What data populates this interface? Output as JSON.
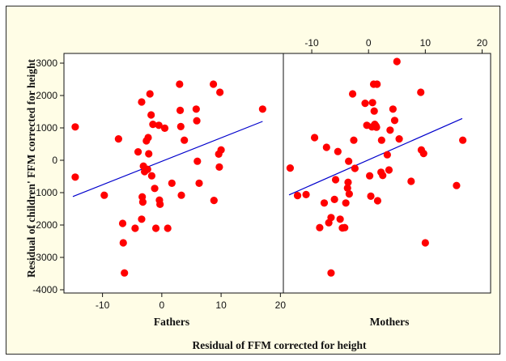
{
  "colors": {
    "background": "#fffde6",
    "point": "#ff0000",
    "fit_line": "#0000cc",
    "panel": "#ffffff"
  },
  "labels": {
    "ylabel": "Residual of children' FFM corrected for height",
    "xlabel": "Residual of FFM corrected for height"
  },
  "chart_data": [
    {
      "type": "scatter",
      "title": "Fathers",
      "xlim": [
        -16.5,
        20.5
      ],
      "ylim": [
        -4100,
        3300
      ],
      "x_ticks": [
        "-10",
        "0",
        "10",
        "20"
      ],
      "y_ticks": [
        "-4000",
        "-3000",
        "-2000",
        "-1000",
        "0",
        "1000",
        "2000",
        "3000"
      ],
      "x_tick_values": [
        -10,
        0,
        10,
        20
      ],
      "y_tick_values": [
        -4000,
        -3000,
        -2000,
        -1000,
        0,
        1000,
        2000,
        3000
      ],
      "x_axis_position": "bottom",
      "y_axis_position": "left",
      "grid": false,
      "trend_line": {
        "x": [
          -15,
          17
        ],
        "y": [
          -1120,
          1200
        ]
      },
      "points": [
        {
          "x": -14.6,
          "y": 1030
        },
        {
          "x": -14.6,
          "y": -520
        },
        {
          "x": -9.7,
          "y": -1080
        },
        {
          "x": -7.3,
          "y": 660
        },
        {
          "x": -6.6,
          "y": -1950
        },
        {
          "x": -6.5,
          "y": -2550
        },
        {
          "x": -6.3,
          "y": -3480
        },
        {
          "x": -4.5,
          "y": -2100
        },
        {
          "x": -4.0,
          "y": 260
        },
        {
          "x": -3.4,
          "y": 1800
        },
        {
          "x": -3.4,
          "y": -1820
        },
        {
          "x": -3.3,
          "y": -1130
        },
        {
          "x": -3.2,
          "y": -1290
        },
        {
          "x": -3.1,
          "y": -180
        },
        {
          "x": -2.9,
          "y": -350
        },
        {
          "x": -2.6,
          "y": 600
        },
        {
          "x": -2.4,
          "y": -280
        },
        {
          "x": -2.3,
          "y": 700
        },
        {
          "x": -2.2,
          "y": 200
        },
        {
          "x": -2.0,
          "y": 2050
        },
        {
          "x": -1.8,
          "y": 1400
        },
        {
          "x": -1.7,
          "y": -480
        },
        {
          "x": -1.5,
          "y": 1110
        },
        {
          "x": -1.2,
          "y": -870
        },
        {
          "x": -1.0,
          "y": -2100
        },
        {
          "x": -0.5,
          "y": 1080
        },
        {
          "x": -0.4,
          "y": -1230
        },
        {
          "x": -0.3,
          "y": -1360
        },
        {
          "x": 0.5,
          "y": 990
        },
        {
          "x": 1.0,
          "y": -2100
        },
        {
          "x": 1.7,
          "y": -710
        },
        {
          "x": 3.0,
          "y": 2350
        },
        {
          "x": 3.1,
          "y": 1540
        },
        {
          "x": 3.2,
          "y": 1040
        },
        {
          "x": 3.3,
          "y": -1080
        },
        {
          "x": 3.8,
          "y": 620
        },
        {
          "x": 5.8,
          "y": 1580
        },
        {
          "x": 5.9,
          "y": 1220
        },
        {
          "x": 6.0,
          "y": -30
        },
        {
          "x": 6.3,
          "y": -710
        },
        {
          "x": 8.7,
          "y": 2350
        },
        {
          "x": 8.8,
          "y": -1240
        },
        {
          "x": 9.6,
          "y": 190
        },
        {
          "x": 9.7,
          "y": -210
        },
        {
          "x": 9.8,
          "y": 2100
        },
        {
          "x": 10.0,
          "y": 320
        },
        {
          "x": 17.0,
          "y": 1580
        }
      ]
    },
    {
      "type": "scatter",
      "title": "Mothers",
      "xlim": [
        -15,
        21.5
      ],
      "ylim": [
        -4100,
        3300
      ],
      "x_ticks": [
        "-10",
        "0",
        "10",
        "20"
      ],
      "x_tick_values": [
        -10,
        0,
        10,
        20
      ],
      "y_tick_values": [
        -4000,
        -3000,
        -2000,
        -1000,
        0,
        1000,
        2000,
        3000
      ],
      "x_axis_position": "top",
      "grid": false,
      "trend_line": {
        "x": [
          -14,
          16.5
        ],
        "y": [
          -1070,
          1290
        ]
      },
      "points": [
        {
          "x": -13.8,
          "y": -240
        },
        {
          "x": -12.5,
          "y": -1090
        },
        {
          "x": -11.0,
          "y": -1060
        },
        {
          "x": -9.5,
          "y": 700
        },
        {
          "x": -8.6,
          "y": -2080
        },
        {
          "x": -7.8,
          "y": -1320
        },
        {
          "x": -7.4,
          "y": 400
        },
        {
          "x": -7.0,
          "y": -1930
        },
        {
          "x": -6.6,
          "y": -1770
        },
        {
          "x": -6.6,
          "y": -3480
        },
        {
          "x": -6.0,
          "y": -1210
        },
        {
          "x": -5.8,
          "y": -600
        },
        {
          "x": -5.4,
          "y": 270
        },
        {
          "x": -5.0,
          "y": -1820
        },
        {
          "x": -4.6,
          "y": -2090
        },
        {
          "x": -4.2,
          "y": -2080
        },
        {
          "x": -4.0,
          "y": -1320
        },
        {
          "x": -3.7,
          "y": -860
        },
        {
          "x": -3.6,
          "y": -680
        },
        {
          "x": -3.5,
          "y": -30
        },
        {
          "x": -3.4,
          "y": -1040
        },
        {
          "x": -2.8,
          "y": 2050
        },
        {
          "x": -2.6,
          "y": 620
        },
        {
          "x": -2.4,
          "y": -250
        },
        {
          "x": -0.6,
          "y": 1760
        },
        {
          "x": -0.3,
          "y": 1080
        },
        {
          "x": 0.2,
          "y": -480
        },
        {
          "x": 0.4,
          "y": -1110
        },
        {
          "x": 0.6,
          "y": 1030
        },
        {
          "x": 0.7,
          "y": 1780
        },
        {
          "x": 0.9,
          "y": 2350
        },
        {
          "x": 1.0,
          "y": 1520
        },
        {
          "x": 1.1,
          "y": 1110
        },
        {
          "x": 1.3,
          "y": 1060
        },
        {
          "x": 1.4,
          "y": 1020
        },
        {
          "x": 1.5,
          "y": 2350
        },
        {
          "x": 1.6,
          "y": -1250
        },
        {
          "x": 2.2,
          "y": -370
        },
        {
          "x": 2.3,
          "y": 620
        },
        {
          "x": 2.5,
          "y": -470
        },
        {
          "x": 3.3,
          "y": 170
        },
        {
          "x": 3.6,
          "y": -300
        },
        {
          "x": 3.8,
          "y": 930
        },
        {
          "x": 4.3,
          "y": 1580
        },
        {
          "x": 4.6,
          "y": 1230
        },
        {
          "x": 5.0,
          "y": 3050
        },
        {
          "x": 5.4,
          "y": 660
        },
        {
          "x": 7.5,
          "y": -650
        },
        {
          "x": 9.2,
          "y": 2100
        },
        {
          "x": 9.3,
          "y": 320
        },
        {
          "x": 9.7,
          "y": 210
        },
        {
          "x": 10.0,
          "y": -2550
        },
        {
          "x": 15.5,
          "y": -780
        },
        {
          "x": 16.6,
          "y": 620
        }
      ]
    }
  ]
}
